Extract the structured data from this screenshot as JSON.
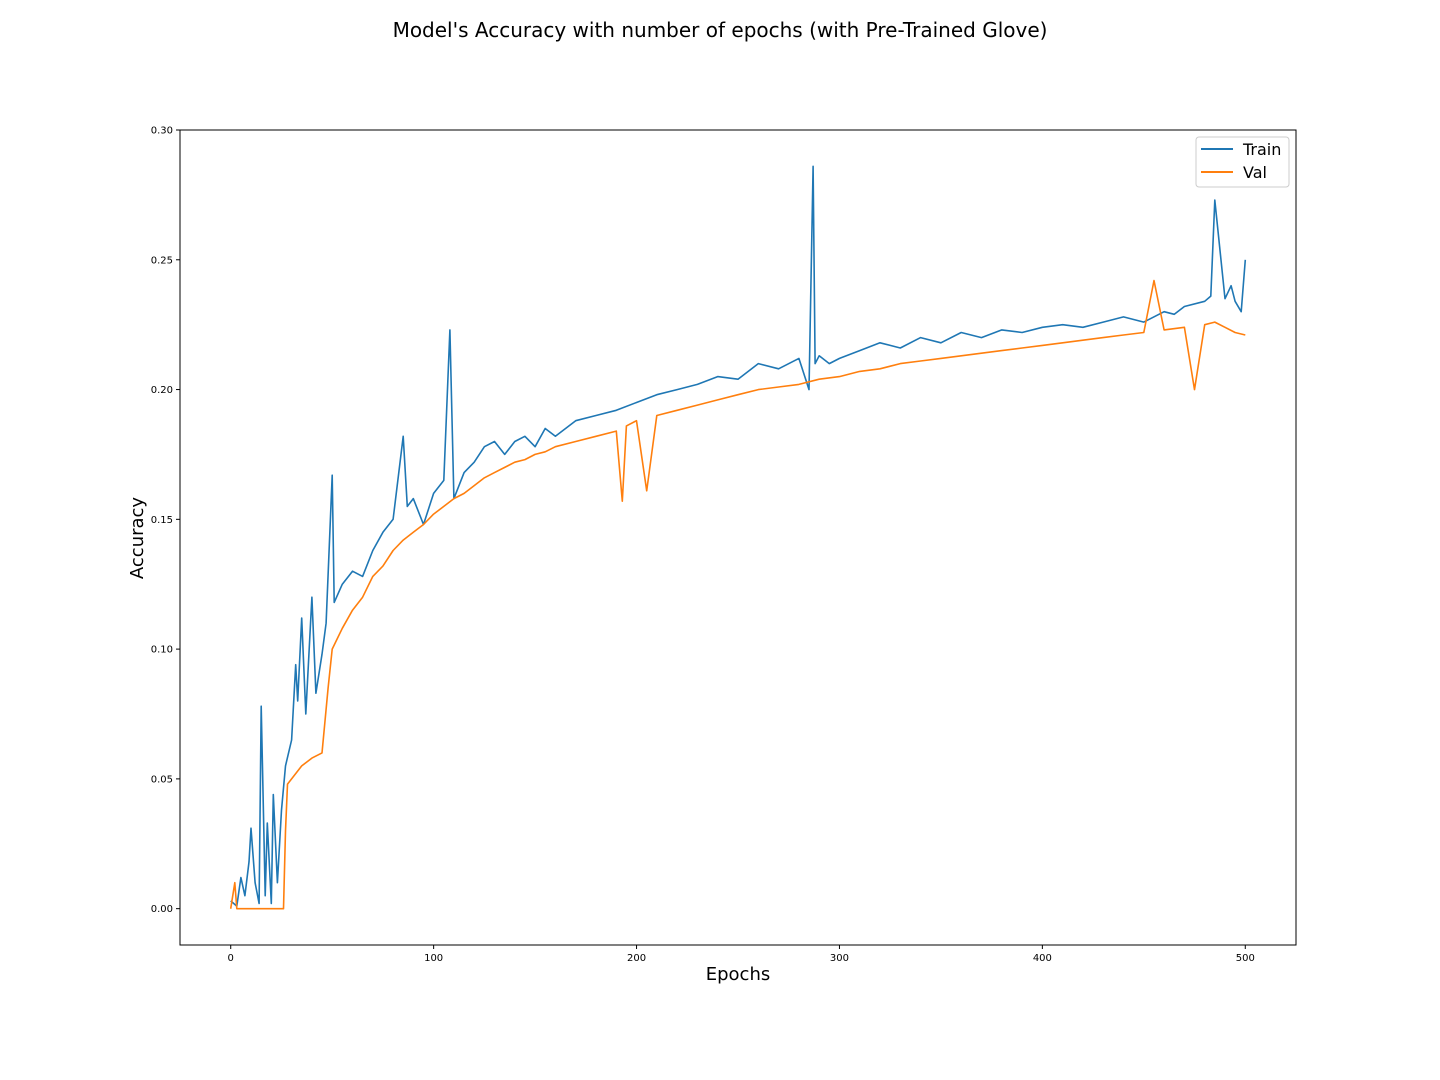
{
  "chart_data": {
    "type": "line",
    "title": "Model's Accuracy with number of epochs (with Pre-Trained Glove)",
    "xlabel": "Epochs",
    "ylabel": "Accuracy",
    "xlim": [
      -25,
      525
    ],
    "ylim": [
      -0.014,
      0.3
    ],
    "xticks": [
      0,
      100,
      200,
      300,
      400,
      500
    ],
    "yticks": [
      0.0,
      0.05,
      0.1,
      0.15,
      0.2,
      0.25,
      0.3
    ],
    "ytick_labels": [
      "0.00",
      "0.05",
      "0.10",
      "0.15",
      "0.20",
      "0.25",
      "0.30"
    ],
    "grid": false,
    "legend_position": "top-right",
    "series": [
      {
        "name": "Train",
        "color": "#1f77b4",
        "x": [
          0,
          3,
          5,
          7,
          9,
          10,
          12,
          14,
          15,
          17,
          18,
          20,
          21,
          23,
          25,
          27,
          30,
          32,
          33,
          35,
          37,
          40,
          42,
          45,
          47,
          50,
          51,
          55,
          60,
          65,
          70,
          75,
          80,
          85,
          87,
          90,
          95,
          100,
          105,
          108,
          110,
          115,
          120,
          125,
          130,
          135,
          140,
          145,
          150,
          155,
          160,
          170,
          180,
          190,
          200,
          210,
          220,
          230,
          240,
          250,
          260,
          270,
          280,
          285,
          287,
          288,
          290,
          295,
          300,
          310,
          320,
          330,
          340,
          350,
          360,
          370,
          380,
          390,
          400,
          410,
          420,
          430,
          440,
          450,
          460,
          465,
          470,
          480,
          483,
          485,
          490,
          493,
          495,
          498,
          500
        ],
        "values": [
          0.003,
          0.001,
          0.012,
          0.005,
          0.018,
          0.031,
          0.01,
          0.002,
          0.078,
          0.005,
          0.033,
          0.002,
          0.044,
          0.01,
          0.038,
          0.055,
          0.065,
          0.094,
          0.08,
          0.112,
          0.075,
          0.12,
          0.083,
          0.098,
          0.11,
          0.167,
          0.118,
          0.125,
          0.13,
          0.128,
          0.138,
          0.145,
          0.15,
          0.182,
          0.155,
          0.158,
          0.148,
          0.16,
          0.165,
          0.223,
          0.158,
          0.168,
          0.172,
          0.178,
          0.18,
          0.175,
          0.18,
          0.182,
          0.178,
          0.185,
          0.182,
          0.188,
          0.19,
          0.192,
          0.195,
          0.198,
          0.2,
          0.202,
          0.205,
          0.204,
          0.21,
          0.208,
          0.212,
          0.2,
          0.286,
          0.21,
          0.213,
          0.21,
          0.212,
          0.215,
          0.218,
          0.216,
          0.22,
          0.218,
          0.222,
          0.22,
          0.223,
          0.222,
          0.224,
          0.225,
          0.224,
          0.226,
          0.228,
          0.226,
          0.23,
          0.229,
          0.232,
          0.234,
          0.236,
          0.273,
          0.235,
          0.24,
          0.234,
          0.23,
          0.25
        ]
      },
      {
        "name": "Val",
        "color": "#ff7f0e",
        "x": [
          0,
          2,
          3,
          5,
          10,
          15,
          20,
          25,
          26,
          27,
          28,
          30,
          35,
          40,
          45,
          48,
          50,
          55,
          60,
          65,
          70,
          75,
          80,
          85,
          90,
          95,
          100,
          105,
          110,
          115,
          120,
          125,
          130,
          135,
          140,
          145,
          150,
          155,
          160,
          170,
          180,
          190,
          193,
          195,
          200,
          205,
          210,
          220,
          230,
          240,
          250,
          260,
          270,
          280,
          290,
          300,
          310,
          320,
          330,
          340,
          350,
          360,
          370,
          380,
          390,
          400,
          410,
          420,
          430,
          440,
          450,
          455,
          460,
          470,
          475,
          480,
          485,
          490,
          495,
          500
        ],
        "values": [
          0.0,
          0.01,
          0.0,
          0.0,
          0.0,
          0.0,
          0.0,
          0.0,
          0.0,
          0.03,
          0.048,
          0.05,
          0.055,
          0.058,
          0.06,
          0.085,
          0.1,
          0.108,
          0.115,
          0.12,
          0.128,
          0.132,
          0.138,
          0.142,
          0.145,
          0.148,
          0.152,
          0.155,
          0.158,
          0.16,
          0.163,
          0.166,
          0.168,
          0.17,
          0.172,
          0.173,
          0.175,
          0.176,
          0.178,
          0.18,
          0.182,
          0.184,
          0.157,
          0.186,
          0.188,
          0.161,
          0.19,
          0.192,
          0.194,
          0.196,
          0.198,
          0.2,
          0.201,
          0.202,
          0.204,
          0.205,
          0.207,
          0.208,
          0.21,
          0.211,
          0.212,
          0.213,
          0.214,
          0.215,
          0.216,
          0.217,
          0.218,
          0.219,
          0.22,
          0.221,
          0.222,
          0.242,
          0.223,
          0.224,
          0.2,
          0.225,
          0.226,
          0.224,
          0.222,
          0.221
        ]
      }
    ]
  }
}
